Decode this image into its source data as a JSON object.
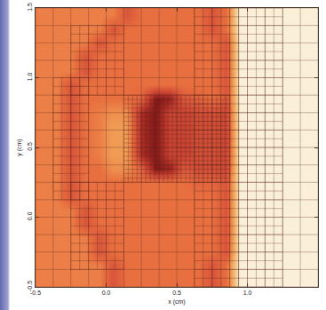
{
  "chart_data": {
    "type": "heatmap",
    "x_label": "x (cm)",
    "y_label": "y (cm)",
    "x": [
      -0.45,
      -0.35,
      -0.25,
      -0.15,
      -0.05,
      0.05,
      0.15,
      0.25,
      0.35,
      0.45,
      0.55,
      0.65,
      0.75,
      0.85,
      0.95,
      1.05,
      1.15,
      1.25,
      1.35,
      1.45
    ],
    "y": [
      -0.45,
      -0.35,
      -0.25,
      -0.15,
      -0.05,
      0.05,
      0.15,
      0.25,
      0.35,
      0.45,
      0.55,
      0.65,
      0.75,
      0.85,
      0.95,
      1.05,
      1.15,
      1.25,
      1.35,
      1.45
    ],
    "z": [
      [
        0.55,
        0.55,
        0.55,
        0.55,
        0.55,
        0.72,
        0.6,
        0.6,
        0.6,
        0.6,
        0.6,
        0.6,
        0.72,
        0.6,
        0.1,
        0.1,
        0.1,
        0.1,
        0.1,
        0.1
      ],
      [
        0.55,
        0.55,
        0.55,
        0.55,
        0.55,
        0.72,
        0.6,
        0.6,
        0.6,
        0.6,
        0.6,
        0.6,
        0.72,
        0.6,
        0.1,
        0.1,
        0.1,
        0.1,
        0.1,
        0.1
      ],
      [
        0.55,
        0.55,
        0.55,
        0.55,
        0.72,
        0.6,
        0.6,
        0.6,
        0.6,
        0.6,
        0.6,
        0.6,
        0.6,
        0.72,
        0.1,
        0.1,
        0.1,
        0.1,
        0.1,
        0.1
      ],
      [
        0.55,
        0.55,
        0.55,
        0.55,
        0.72,
        0.6,
        0.6,
        0.6,
        0.6,
        0.6,
        0.6,
        0.6,
        0.6,
        0.72,
        0.1,
        0.1,
        0.1,
        0.1,
        0.1,
        0.1
      ],
      [
        0.55,
        0.55,
        0.55,
        0.72,
        0.6,
        0.6,
        0.6,
        0.6,
        0.6,
        0.6,
        0.6,
        0.6,
        0.6,
        0.72,
        0.1,
        0.1,
        0.1,
        0.1,
        0.1,
        0.1
      ],
      [
        0.55,
        0.55,
        0.55,
        0.72,
        0.6,
        0.6,
        0.6,
        0.6,
        0.6,
        0.6,
        0.6,
        0.6,
        0.6,
        0.72,
        0.1,
        0.1,
        0.1,
        0.1,
        0.1,
        0.1
      ],
      [
        0.55,
        0.55,
        0.72,
        0.6,
        0.6,
        0.6,
        0.6,
        0.6,
        0.6,
        0.6,
        0.6,
        0.6,
        0.6,
        0.72,
        0.1,
        0.1,
        0.1,
        0.1,
        0.1,
        0.1
      ],
      [
        0.55,
        0.55,
        0.72,
        0.6,
        0.6,
        0.6,
        0.6,
        0.6,
        0.6,
        0.6,
        0.6,
        0.65,
        0.65,
        0.72,
        0.1,
        0.1,
        0.1,
        0.1,
        0.1,
        0.1
      ],
      [
        0.55,
        0.55,
        0.72,
        0.6,
        0.6,
        0.5,
        0.5,
        0.65,
        1.0,
        0.95,
        0.7,
        0.75,
        0.75,
        0.78,
        0.1,
        0.1,
        0.1,
        0.1,
        0.1,
        0.1
      ],
      [
        0.55,
        0.55,
        0.72,
        0.6,
        0.55,
        0.45,
        0.45,
        0.9,
        1.0,
        0.8,
        0.8,
        0.75,
        0.75,
        0.78,
        0.1,
        0.1,
        0.1,
        0.1,
        0.1,
        0.1
      ],
      [
        0.55,
        0.55,
        0.72,
        0.6,
        0.55,
        0.45,
        0.45,
        0.9,
        1.0,
        0.8,
        0.8,
        0.75,
        0.75,
        0.78,
        0.1,
        0.1,
        0.1,
        0.1,
        0.1,
        0.1
      ],
      [
        0.55,
        0.55,
        0.72,
        0.6,
        0.55,
        0.45,
        0.45,
        0.9,
        1.0,
        0.8,
        0.8,
        0.75,
        0.75,
        0.78,
        0.1,
        0.1,
        0.1,
        0.1,
        0.1,
        0.1
      ],
      [
        0.55,
        0.55,
        0.72,
        0.6,
        0.55,
        0.5,
        0.5,
        0.9,
        1.0,
        0.8,
        0.8,
        0.75,
        0.75,
        0.78,
        0.1,
        0.1,
        0.1,
        0.1,
        0.1,
        0.1
      ],
      [
        0.55,
        0.55,
        0.72,
        0.6,
        0.6,
        0.6,
        0.6,
        0.65,
        1.0,
        0.95,
        0.7,
        0.65,
        0.6,
        0.72,
        0.1,
        0.1,
        0.1,
        0.1,
        0.1,
        0.1
      ],
      [
        0.55,
        0.55,
        0.72,
        0.6,
        0.6,
        0.6,
        0.6,
        0.6,
        0.6,
        0.6,
        0.6,
        0.6,
        0.6,
        0.72,
        0.1,
        0.1,
        0.1,
        0.1,
        0.1,
        0.1
      ],
      [
        0.55,
        0.55,
        0.55,
        0.72,
        0.6,
        0.6,
        0.6,
        0.6,
        0.6,
        0.6,
        0.6,
        0.6,
        0.6,
        0.72,
        0.1,
        0.1,
        0.1,
        0.1,
        0.1,
        0.1
      ],
      [
        0.55,
        0.55,
        0.55,
        0.72,
        0.6,
        0.6,
        0.6,
        0.6,
        0.6,
        0.6,
        0.6,
        0.6,
        0.6,
        0.72,
        0.1,
        0.1,
        0.1,
        0.1,
        0.1,
        0.1
      ],
      [
        0.55,
        0.55,
        0.55,
        0.55,
        0.72,
        0.6,
        0.6,
        0.6,
        0.6,
        0.6,
        0.6,
        0.6,
        0.6,
        0.72,
        0.1,
        0.1,
        0.1,
        0.1,
        0.1,
        0.1
      ],
      [
        0.55,
        0.55,
        0.55,
        0.55,
        0.55,
        0.72,
        0.6,
        0.6,
        0.6,
        0.6,
        0.6,
        0.6,
        0.72,
        0.6,
        0.1,
        0.1,
        0.1,
        0.1,
        0.1,
        0.1
      ],
      [
        0.55,
        0.55,
        0.55,
        0.55,
        0.55,
        0.55,
        0.72,
        0.6,
        0.6,
        0.6,
        0.6,
        0.6,
        0.72,
        0.6,
        0.1,
        0.1,
        0.1,
        0.1,
        0.1,
        0.1
      ]
    ],
    "zlim": [
      0,
      1
    ],
    "xlim": [
      -0.5,
      1.5
    ],
    "ylim": [
      -0.5,
      1.5
    ],
    "xticks": [
      {
        "value": -0.5,
        "label": "-0.5"
      },
      {
        "value": 0,
        "label": "0.0"
      },
      0.5,
      {
        "value": 1,
        "label": "1.0"
      }
    ],
    "yticks": [
      {
        "value": -0.5,
        "label": "-0.5"
      },
      {
        "value": 0,
        "label": "0.0"
      },
      0.5,
      {
        "value": 1,
        "label": "1.0"
      },
      1.5
    ],
    "grid": false,
    "mesh_regions": [
      {
        "x0": -0.5,
        "x1": 1.5,
        "y0": -0.5,
        "y1": 1.5,
        "cell": 0.125
      },
      {
        "x0": 0.9375,
        "x1": 1.25,
        "y0": -0.5,
        "y1": 1.5,
        "cell": 0.0625
      },
      {
        "x0": -0.375,
        "x1": -0.125,
        "y0": 0.125,
        "y1": 1.0,
        "cell": 0.0625
      },
      {
        "x0": -0.25,
        "x1": 0.125,
        "y0": -0.375,
        "y1": 0.25,
        "cell": 0.0625
      },
      {
        "x0": -0.25,
        "x1": 0.125,
        "y0": 0.875,
        "y1": 1.375,
        "cell": 0.0625
      },
      {
        "x0": 0.625,
        "x1": 0.9375,
        "y0": -0.5,
        "y1": 1.5,
        "cell": 0.0625
      },
      {
        "x0": 0.125,
        "x1": 0.875,
        "y0": 0.25,
        "y1": 0.875,
        "cell": 0.03125
      }
    ]
  }
}
